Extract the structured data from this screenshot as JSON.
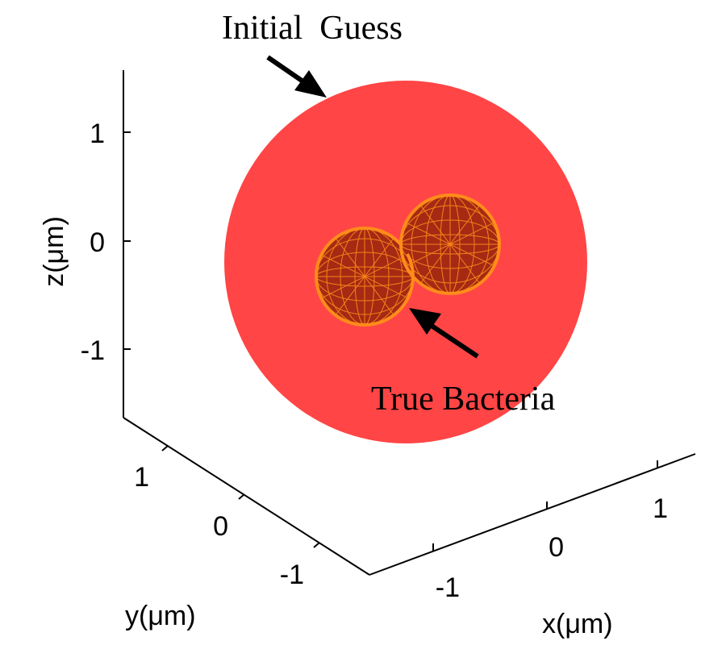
{
  "annotations": {
    "initial_guess": "Initial  Guess",
    "true_bacteria": "True Bacteria"
  },
  "axes": {
    "z": {
      "label": "z(μm)",
      "ticks": [
        "1",
        "0",
        "-1"
      ]
    },
    "y": {
      "label": "y(μm)",
      "ticks": [
        "1",
        "0",
        "-1"
      ]
    },
    "x": {
      "label": "x(μm)",
      "ticks": [
        "-1",
        "0",
        "1"
      ]
    }
  },
  "colors": {
    "initial_guess": "#ff4545",
    "bacteria_fill": "#a52a14",
    "bacteria_mesh": "#ff8c1a",
    "axis": "#000000"
  }
}
